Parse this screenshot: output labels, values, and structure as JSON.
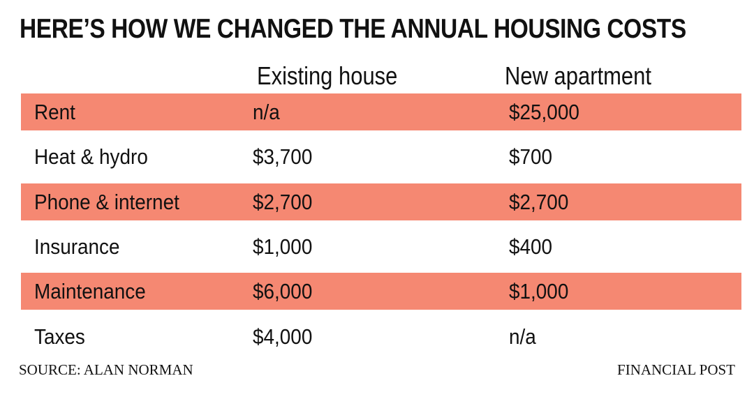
{
  "chart_data": {
    "type": "table",
    "title": "HERE’S HOW WE CHANGED THE ANNUAL HOUSING COSTS",
    "columns": [
      "Existing house",
      "New apartment"
    ],
    "rows": [
      {
        "label": "Rent",
        "existing": "n/a",
        "new": "$25,000"
      },
      {
        "label": "Heat & hydro",
        "existing": "$3,700",
        "new": "$700"
      },
      {
        "label": "Phone & internet",
        "existing": "$2,700",
        "new": "$2,700"
      },
      {
        "label": "Insurance",
        "existing": "$1,000",
        "new": "$400"
      },
      {
        "label": "Maintenance",
        "existing": "$6,000",
        "new": "$1,000"
      },
      {
        "label": "Taxes",
        "existing": "$4,000",
        "new": "n/a"
      }
    ],
    "source": "SOURCE: ALAN NORMAN",
    "credit": "FINANCIAL POST",
    "row_shade_color": "#f58872"
  }
}
